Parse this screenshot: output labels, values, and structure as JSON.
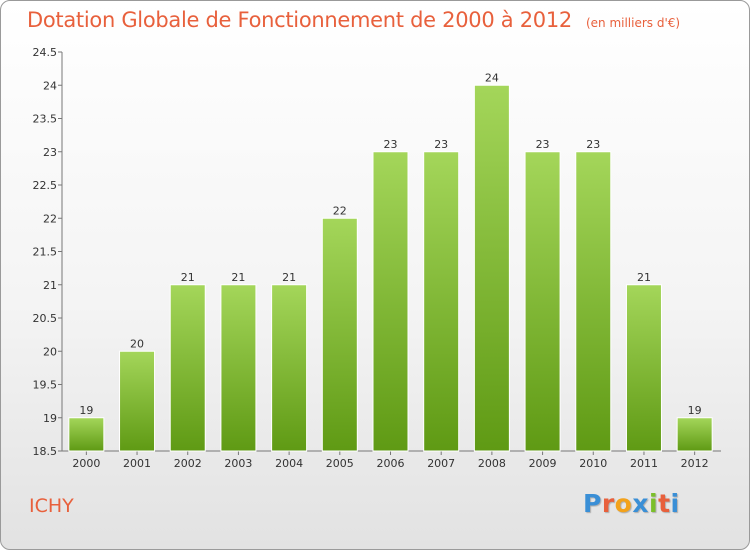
{
  "colors": {
    "title": "#e8603c",
    "bar_light": "#a4d65a",
    "bar_dark": "#5f9a14",
    "axis": "#777777"
  },
  "commune": "ICHY",
  "logo": {
    "letters": [
      "P",
      "r",
      "o",
      "x",
      "i",
      "t",
      "i"
    ],
    "letter_colors": [
      "#3a8fd6",
      "#e8603c",
      "#f3a21b",
      "#3a8fd6",
      "#7bbf2a",
      "#e8603c",
      "#3a8fd6"
    ]
  },
  "chart_data": {
    "type": "bar",
    "title": "Dotation Globale de Fonctionnement de 2000 à 2012",
    "subtitle": "(en milliers d'€)",
    "categories": [
      "2000",
      "2001",
      "2002",
      "2003",
      "2004",
      "2005",
      "2006",
      "2007",
      "2008",
      "2009",
      "2010",
      "2011",
      "2012"
    ],
    "values": [
      19,
      20,
      21,
      21,
      21,
      22,
      23,
      23,
      24,
      23,
      23,
      21,
      19
    ],
    "data_labels": [
      "19",
      "20",
      "21",
      "21",
      "21",
      "22",
      "23",
      "23",
      "24",
      "23",
      "23",
      "21",
      "19"
    ],
    "ylim": [
      18.5,
      24.5
    ],
    "yticks": [
      "18.5",
      "19",
      "19.5",
      "20",
      "20.5",
      "21",
      "21.5",
      "22",
      "22.5",
      "23",
      "23.5",
      "24",
      "24.5"
    ],
    "xlabel": "",
    "ylabel": "",
    "grid": false,
    "legend": "none"
  }
}
